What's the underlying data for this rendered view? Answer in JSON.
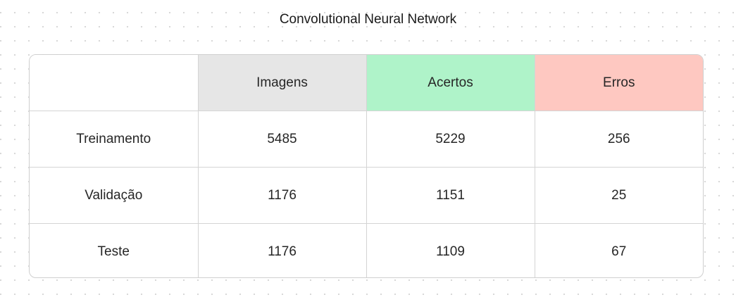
{
  "title": "Convolutional Neural Network",
  "table": {
    "headers": [
      "",
      "Imagens",
      "Acertos",
      "Erros"
    ],
    "header_colors": {
      "imagens": "#e6e6e6",
      "acertos": "#aff3c9",
      "erros": "#fec8c1"
    },
    "rows": [
      {
        "label": "Treinamento",
        "imagens": "5485",
        "acertos": "5229",
        "erros": "256"
      },
      {
        "label": "Validação",
        "imagens": "1176",
        "acertos": "1151",
        "erros": "25"
      },
      {
        "label": "Teste",
        "imagens": "1176",
        "acertos": "1109",
        "erros": "67"
      }
    ]
  }
}
